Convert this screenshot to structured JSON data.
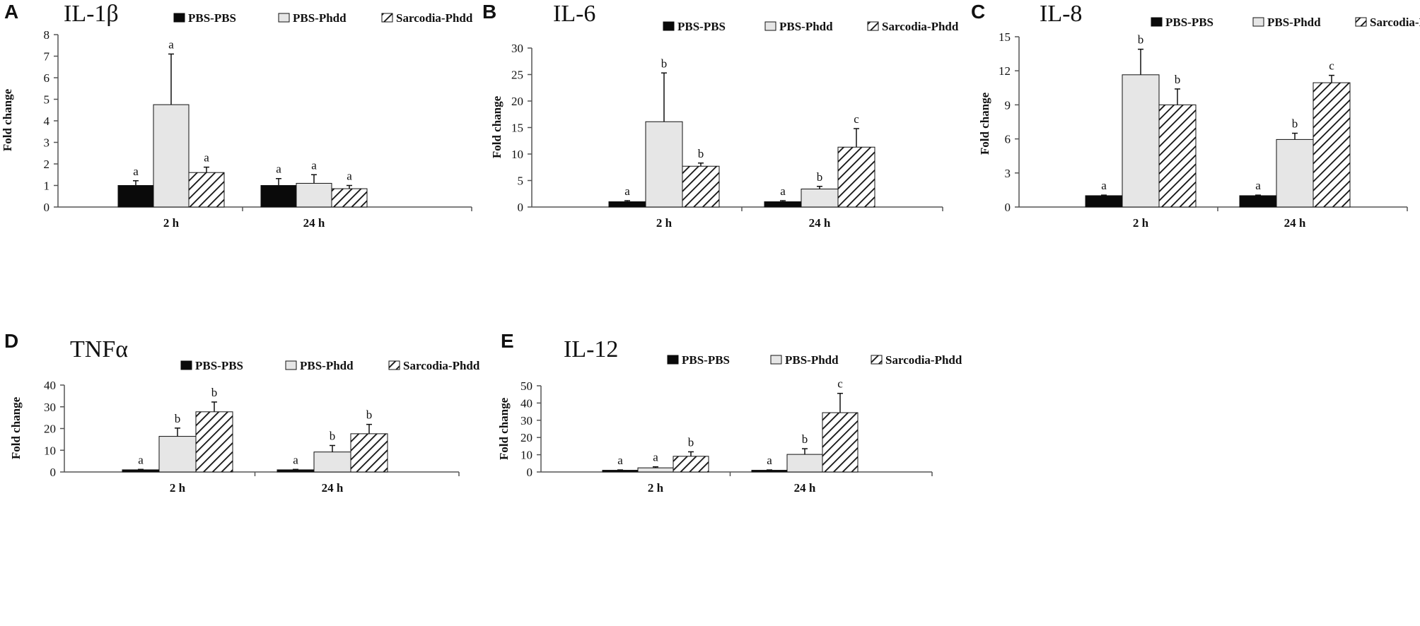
{
  "figure": {
    "series_names": [
      "PBS-PBS",
      "PBS-Phdd",
      "Sarcodia-Phdd"
    ],
    "colors": {
      "pbs_pbs": "#0a0a0a",
      "pbs_phdd": "#e6e6e6",
      "sarcodia_fill": "#ffffff",
      "hatch": "#111111",
      "axis": "#555555"
    }
  },
  "chart_data": [
    {
      "panel": "A",
      "title": "IL-1β",
      "type": "bar",
      "ylabel": "Fold change",
      "categories": [
        "2 h",
        "24 h"
      ],
      "ylim": [
        0,
        8
      ],
      "yticks": [
        0,
        1,
        2,
        3,
        4,
        5,
        6,
        7,
        8
      ],
      "series": [
        {
          "name": "PBS-PBS",
          "values": [
            1.0,
            1.0
          ],
          "errors": [
            0.22,
            0.32
          ],
          "labels": [
            "a",
            "a"
          ]
        },
        {
          "name": "PBS-Phdd",
          "values": [
            4.75,
            1.1
          ],
          "errors": [
            2.35,
            0.4
          ],
          "labels": [
            "a",
            "a"
          ]
        },
        {
          "name": "Sarcodia-Phdd",
          "values": [
            1.6,
            0.85
          ],
          "errors": [
            0.25,
            0.15
          ],
          "labels": [
            "a",
            "a"
          ]
        }
      ]
    },
    {
      "panel": "B",
      "title": "IL-6",
      "type": "bar",
      "ylabel": "Fold change",
      "categories": [
        "2 h",
        "24 h"
      ],
      "ylim": [
        0,
        30
      ],
      "yticks": [
        0,
        5,
        10,
        15,
        20,
        25,
        30
      ],
      "series": [
        {
          "name": "PBS-PBS",
          "values": [
            1.0,
            1.0
          ],
          "errors": [
            0.2,
            0.2
          ],
          "labels": [
            "a",
            "a"
          ]
        },
        {
          "name": "PBS-Phdd",
          "values": [
            16.1,
            3.4
          ],
          "errors": [
            9.2,
            0.5
          ],
          "labels": [
            "b",
            "b"
          ]
        },
        {
          "name": "Sarcodia-Phdd",
          "values": [
            7.7,
            11.3
          ],
          "errors": [
            0.6,
            3.5
          ],
          "labels": [
            "b",
            "c"
          ]
        }
      ]
    },
    {
      "panel": "C",
      "title": "IL-8",
      "type": "bar",
      "ylabel": "Fold change",
      "categories": [
        "2 h",
        "24 h"
      ],
      "ylim": [
        0,
        15
      ],
      "yticks": [
        0,
        3,
        6,
        9,
        12,
        15
      ],
      "series": [
        {
          "name": "PBS-PBS",
          "values": [
            1.0,
            1.0
          ],
          "errors": [
            0.05,
            0.05
          ],
          "labels": [
            "a",
            "a"
          ]
        },
        {
          "name": "PBS-Phdd",
          "values": [
            11.65,
            5.95
          ],
          "errors": [
            2.25,
            0.55
          ],
          "labels": [
            "b",
            "b"
          ]
        },
        {
          "name": "Sarcodia-Phdd",
          "values": [
            9.0,
            10.95
          ],
          "errors": [
            1.4,
            0.65
          ],
          "labels": [
            "b",
            "c"
          ]
        }
      ]
    },
    {
      "panel": "D",
      "title": "TNFα",
      "type": "bar",
      "ylabel": "Fold change",
      "categories": [
        "2 h",
        "24 h"
      ],
      "ylim": [
        0,
        40
      ],
      "yticks": [
        0,
        10,
        20,
        30,
        40
      ],
      "series": [
        {
          "name": "PBS-PBS",
          "values": [
            1.0,
            1.0
          ],
          "errors": [
            0.2,
            0.2
          ],
          "labels": [
            "a",
            "a"
          ]
        },
        {
          "name": "PBS-Phdd",
          "values": [
            16.4,
            9.2
          ],
          "errors": [
            3.8,
            3.0
          ],
          "labels": [
            "b",
            "b"
          ]
        },
        {
          "name": "Sarcodia-Phdd",
          "values": [
            27.7,
            17.6
          ],
          "errors": [
            4.5,
            4.3
          ],
          "labels": [
            "b",
            "b"
          ]
        }
      ]
    },
    {
      "panel": "E",
      "title": "IL-12",
      "type": "bar",
      "ylabel": "Fold change",
      "categories": [
        "2 h",
        "24 h"
      ],
      "ylim": [
        0,
        50
      ],
      "yticks": [
        0,
        10,
        20,
        30,
        40,
        50
      ],
      "series": [
        {
          "name": "PBS-PBS",
          "values": [
            1.0,
            1.0
          ],
          "errors": [
            0.2,
            0.2
          ],
          "labels": [
            "a",
            "a"
          ]
        },
        {
          "name": "PBS-Phdd",
          "values": [
            2.4,
            10.2
          ],
          "errors": [
            0.6,
            3.3
          ],
          "labels": [
            "a",
            "b"
          ]
        },
        {
          "name": "Sarcodia-Phdd",
          "values": [
            9.1,
            34.4
          ],
          "errors": [
            2.6,
            11.2
          ],
          "labels": [
            "b",
            "c"
          ]
        }
      ]
    }
  ]
}
